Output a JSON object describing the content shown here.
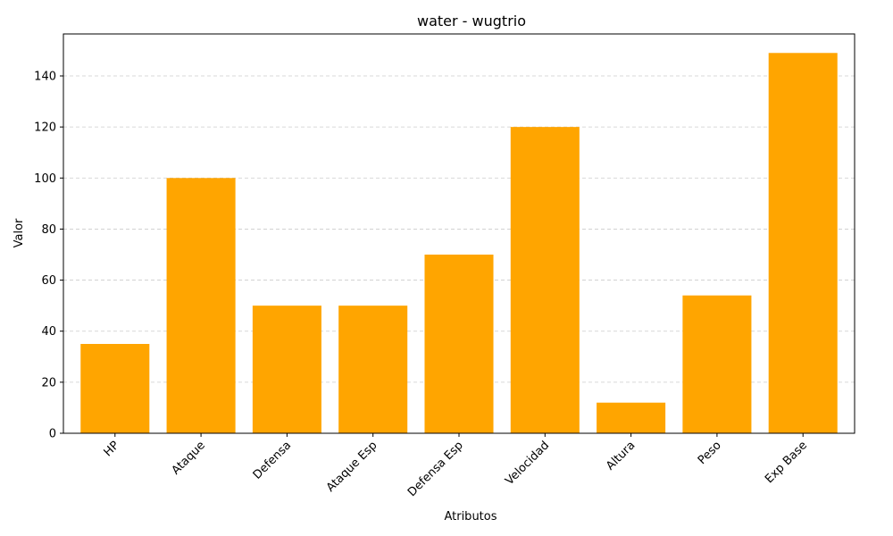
{
  "chart_data": {
    "type": "bar",
    "title": "water - wugtrio",
    "xlabel": "Atributos",
    "ylabel": "Valor",
    "categories": [
      "HP",
      "Ataque",
      "Defensa",
      "Ataque Esp",
      "Defensa Esp",
      "Velocidad",
      "Altura",
      "Peso",
      "Exp Base"
    ],
    "values": [
      35,
      100,
      50,
      50,
      70,
      120,
      12,
      54,
      149
    ],
    "ylim": [
      0,
      156.45
    ],
    "yticks": [
      0,
      20,
      40,
      60,
      80,
      100,
      120,
      140
    ],
    "grid": "y-dashed",
    "bar_color": "#ffa500"
  }
}
